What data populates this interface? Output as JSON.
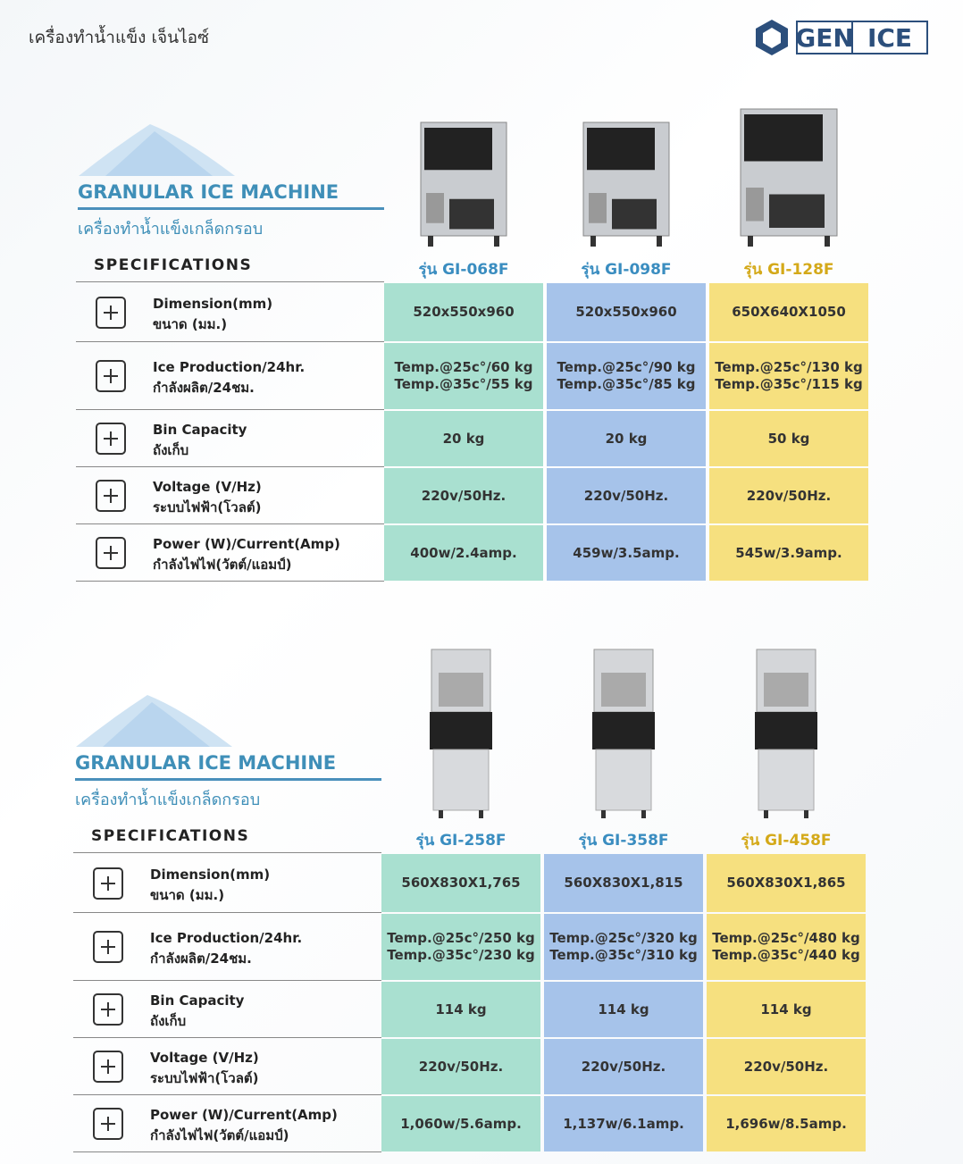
{
  "header": {
    "title": "เครื่องทำน้ำแข็ง เจ็นไอซ์",
    "logo": [
      "GEN",
      "ICE"
    ]
  },
  "sections": [
    {
      "title": "GRANULAR ICE MACHINE",
      "subtitle": "เครื่องทำน้ำแข็งเกล็ดกรอบ",
      "spec_heading": "SPECIFICATIONS",
      "models": [
        "รุ่น GI-068F",
        "รุ่น GI-098F",
        "รุ่น GI-128F"
      ],
      "rows": [
        {
          "label_en": "Dimension(mm)",
          "label_th": "ขนาด (มม.)",
          "values": [
            [
              "520x550x960"
            ],
            [
              "520x550x960"
            ],
            [
              "650X640X1050"
            ]
          ]
        },
        {
          "label_en": "Ice Production/24hr.",
          "label_th": "กำลังผลิต/24ชม.",
          "values": [
            [
              "Temp.@25c°/60 kg",
              "Temp.@35c°/55 kg"
            ],
            [
              "Temp.@25c°/90 kg",
              "Temp.@35c°/85 kg"
            ],
            [
              "Temp.@25c°/130 kg",
              "Temp.@35c°/115 kg"
            ]
          ]
        },
        {
          "label_en": "Bin Capacity",
          "label_th": "ถังเก็บ",
          "values": [
            [
              "20 kg"
            ],
            [
              "20 kg"
            ],
            [
              "50 kg"
            ]
          ]
        },
        {
          "label_en": "Voltage (V/Hz)",
          "label_th": "ระบบไฟฟ้า(โวลต์)",
          "values": [
            [
              "220v/50Hz."
            ],
            [
              "220v/50Hz."
            ],
            [
              "220v/50Hz."
            ]
          ]
        },
        {
          "label_en": "Power (W)/Current(Amp)",
          "label_th": "กำลังไฟไฟ(วัตต์/แอมป์)",
          "values": [
            [
              "400w/2.4amp."
            ],
            [
              "459w/3.5amp."
            ],
            [
              "545w/3.9amp."
            ]
          ]
        }
      ]
    },
    {
      "title": "GRANULAR ICE MACHINE",
      "subtitle": "เครื่องทำน้ำแข็งเกล็ดกรอบ",
      "spec_heading": "SPECIFICATIONS",
      "models": [
        "รุ่น GI-258F",
        "รุ่น GI-358F",
        "รุ่น GI-458F"
      ],
      "rows": [
        {
          "label_en": "Dimension(mm)",
          "label_th": "ขนาด (มม.)",
          "values": [
            [
              "560X830X1,765"
            ],
            [
              "560X830X1,815"
            ],
            [
              "560X830X1,865"
            ]
          ]
        },
        {
          "label_en": "Ice Production/24hr.",
          "label_th": "กำลังผลิต/24ชม.",
          "values": [
            [
              "Temp.@25c°/250 kg",
              "Temp.@35c°/230 kg"
            ],
            [
              "Temp.@25c°/320 kg",
              "Temp.@35c°/310 kg"
            ],
            [
              "Temp.@25c°/480 kg",
              "Temp.@35c°/440 kg"
            ]
          ]
        },
        {
          "label_en": "Bin Capacity",
          "label_th": "ถังเก็บ",
          "values": [
            [
              "114 kg"
            ],
            [
              "114 kg"
            ],
            [
              "114 kg"
            ]
          ]
        },
        {
          "label_en": "Voltage (V/Hz)",
          "label_th": "ระบบไฟฟ้า(โวลต์)",
          "values": [
            [
              "220v/50Hz."
            ],
            [
              "220v/50Hz."
            ],
            [
              "220v/50Hz."
            ]
          ]
        },
        {
          "label_en": "Power (W)/Current(Amp)",
          "label_th": "กำลังไฟไฟ(วัตต์/แอมป์)",
          "values": [
            [
              "1,060w/5.6amp."
            ],
            [
              "1,137w/6.1amp."
            ],
            [
              "1,696w/8.5amp."
            ]
          ]
        }
      ]
    }
  ]
}
